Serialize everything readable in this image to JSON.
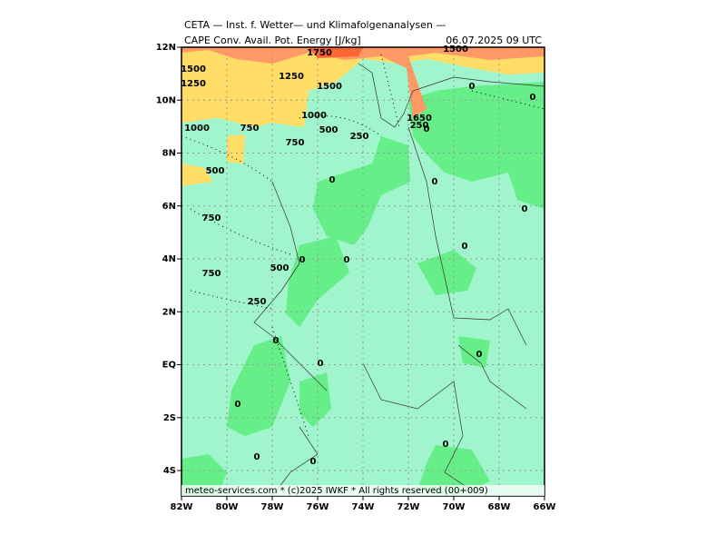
{
  "header": {
    "title": "CETA — Inst. f. Wetter— und Klimafolgenanalysen —",
    "parameter": "CAPE  Conv. Avail. Pot. Energy [J/kg]",
    "valid_time": "06.07.2025  09 UTC"
  },
  "lat_labels": [
    "12N",
    "10N",
    "8N",
    "6N",
    "4N",
    "2N",
    "EQ",
    "2S",
    "4S"
  ],
  "lon_labels": [
    "82W",
    "80W",
    "78W",
    "76W",
    "74W",
    "72W",
    "70W",
    "68W",
    "66W"
  ],
  "contour_labels": [
    "1750",
    "1500",
    "1500",
    "1250",
    "1250",
    "1500",
    "0",
    "0",
    "1000",
    "1650",
    "250",
    "1000",
    "750",
    "500",
    "250",
    "750",
    "0",
    "500",
    "0",
    "0",
    "0",
    "750",
    "0",
    "0",
    "0",
    "500",
    "750",
    "250",
    "0",
    "0",
    "0",
    "0",
    "0",
    "0",
    "0"
  ],
  "footer": "meteo-services.com * (c)2025 IWKF * All rights reserved (00+009)"
}
